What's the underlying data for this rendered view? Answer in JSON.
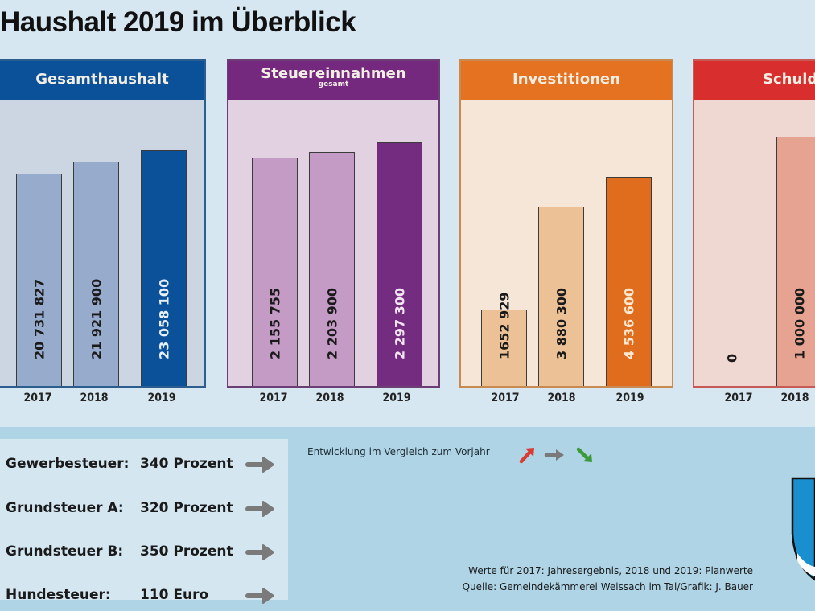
{
  "title": "Haushalt 2019 im Überblick",
  "colors": {
    "background": "#d6e7f1",
    "bottom_band": "#aed4e6",
    "arrow_up": "#d93a31",
    "arrow_flat": "#7a7a7a",
    "arrow_down": "#3d9a3a"
  },
  "chart_data": [
    {
      "type": "bar",
      "title": "Gesamthaushalt",
      "subtitle": "",
      "categories": [
        "2017",
        "2018",
        "2019"
      ],
      "values": [
        20731827,
        21921900,
        23058100
      ],
      "value_labels": [
        "20 731 827",
        "21 921 900",
        "23 058 100"
      ],
      "ylim": [
        0,
        28000000
      ],
      "colors": {
        "header": "#0a519a",
        "panel_bg": "#ccd6e2",
        "border": "#2b5d8f",
        "bar_past": "#97abcd",
        "bar_current": "#0a519a",
        "label_past": "#1a1a1a",
        "label_current": "#e6f0ff"
      }
    },
    {
      "type": "bar",
      "title": "Steuereinnahmen",
      "subtitle": "gesamt",
      "categories": [
        "2017",
        "2018",
        "2019"
      ],
      "values": [
        2155755,
        2203900,
        2297300
      ],
      "value_labels": [
        "2 155 755",
        "2 203 900",
        "2 297 300"
      ],
      "ylim": [
        0,
        2700000
      ],
      "colors": {
        "header": "#74297f",
        "panel_bg": "#e2d2e1",
        "border": "#6b3f74",
        "bar_past": "#c39bc4",
        "bar_current": "#742c80",
        "label_past": "#1a1a1a",
        "label_current": "#f3e6f3"
      }
    },
    {
      "type": "bar",
      "title": "Investitionen",
      "subtitle": "",
      "categories": [
        "2017",
        "2018",
        "2019"
      ],
      "values": [
        1652929,
        3880300,
        4536600
      ],
      "value_labels": [
        "1652 929",
        "3 880 300",
        "4 536 600"
      ],
      "ylim": [
        0,
        6200000
      ],
      "colors": {
        "header": "#e57220",
        "panel_bg": "#f5e6d8",
        "border": "#c98a52",
        "bar_past": "#ecc196",
        "bar_current": "#e06c1d",
        "label_past": "#1a1a1a",
        "label_current": "#fde9d3"
      }
    },
    {
      "type": "bar",
      "title": "Schuld",
      "subtitle": "",
      "categories": [
        "2017",
        "2018"
      ],
      "values": [
        0,
        1000000
      ],
      "value_labels": [
        "0",
        "1 000 000"
      ],
      "ylim": [
        0,
        1150000
      ],
      "colors": {
        "header": "#d92e2e",
        "panel_bg": "#efd8d1",
        "border": "#c85a55",
        "bar_past": "#e6a391",
        "bar_current": "#e6a391",
        "label_past": "#1a1a1a",
        "label_current": "#1a1a1a"
      }
    }
  ],
  "tax_rates": [
    {
      "label": "Gewerbesteuer:",
      "value": "340 Prozent",
      "trend": "arrow-right"
    },
    {
      "label": "Grundsteuer A:",
      "value": "320 Prozent",
      "trend": "arrow-right"
    },
    {
      "label": "Grundsteuer B:",
      "value": "350 Prozent",
      "trend": "arrow-right"
    },
    {
      "label": "Hundesteuer:",
      "value": "110 Euro",
      "trend": "arrow-right"
    }
  ],
  "legend": {
    "text": "Entwicklung im Vergleich zum Vorjahr",
    "icons": [
      "arrow-up-right",
      "arrow-right",
      "arrow-down-right"
    ]
  },
  "notes": {
    "line1": "Werte für 2017: Jahresergebnis, 2018 und 2019: Planwerte",
    "line2": "Quelle:  Gemeindekämmerei Weissach im Tal/Grafik: J. Bauer"
  }
}
